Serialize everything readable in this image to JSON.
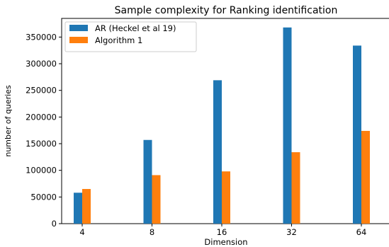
{
  "chart_data": {
    "type": "bar",
    "title": "Sample complexity for Ranking identification",
    "xlabel": "Dimension",
    "ylabel": "number of queries",
    "categories": [
      "4",
      "8",
      "16",
      "32",
      "64"
    ],
    "series": [
      {
        "name": "AR (Heckel et al 19)",
        "color": "#1f77b4",
        "values": [
          58000,
          157000,
          269000,
          368000,
          334000
        ]
      },
      {
        "name": "Algorithm 1",
        "color": "#ff7f0e",
        "values": [
          65000,
          91000,
          98000,
          134000,
          174000
        ]
      }
    ],
    "ylim": [
      0,
      385000
    ],
    "yticks": [
      0,
      50000,
      100000,
      150000,
      200000,
      250000,
      300000,
      350000
    ],
    "ytick_labels": [
      "0",
      "50000",
      "100000",
      "150000",
      "200000",
      "250000",
      "300000",
      "350000"
    ],
    "legend_position": "top-left",
    "grid": false
  }
}
